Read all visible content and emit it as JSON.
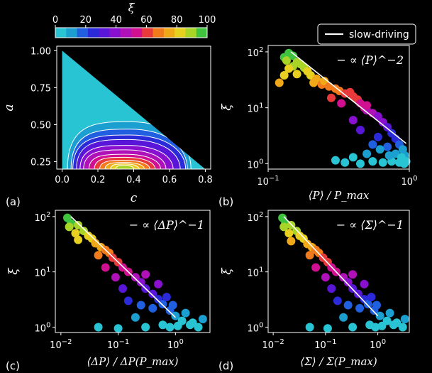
{
  "colorbar": {
    "label": "ξ",
    "ticks": [
      "0",
      "20",
      "40",
      "60",
      "80",
      "100"
    ],
    "colors": [
      "#28c4d4",
      "#1a9fd0",
      "#2060e0",
      "#2a2ad8",
      "#5a16d8",
      "#8a10d0",
      "#b010b8",
      "#d01090",
      "#e83a3a",
      "#f07a1c",
      "#f0a818",
      "#e8d020",
      "#a8d428",
      "#40c440"
    ]
  },
  "legend": {
    "label": "slow-driving"
  },
  "chart_data": [
    {
      "panel": "(a)",
      "type": "contour",
      "xlabel": "c",
      "ylabel": "a",
      "xticks": [
        "0.0",
        "0.2",
        "0.4",
        "0.6",
        "0.8"
      ],
      "yticks": [
        "1.00",
        "0.75",
        "0.50",
        "0.25"
      ],
      "xlim": [
        -0.03,
        0.83
      ],
      "ylim": [
        0.2,
        1.03
      ],
      "region": "triangle c from 0 to 0.8, a from 0.2 to 1.0 along a = 1 - c",
      "peak": {
        "c": 0.35,
        "a": 0.22,
        "value": 90
      },
      "levels": [
        {
          "c_left": 0.03,
          "c_right": 0.72,
          "a_top": 0.52
        },
        {
          "c_left": 0.05,
          "c_right": 0.7,
          "a_top": 0.47
        },
        {
          "c_left": 0.06,
          "c_right": 0.69,
          "a_top": 0.43
        },
        {
          "c_left": 0.08,
          "c_right": 0.66,
          "a_top": 0.4
        },
        {
          "c_left": 0.1,
          "c_right": 0.62,
          "a_top": 0.36
        },
        {
          "c_left": 0.12,
          "c_right": 0.58,
          "a_top": 0.33
        },
        {
          "c_left": 0.15,
          "c_right": 0.55,
          "a_top": 0.3
        },
        {
          "c_left": 0.18,
          "c_right": 0.52,
          "a_top": 0.28
        },
        {
          "c_left": 0.21,
          "c_right": 0.49,
          "a_top": 0.26
        },
        {
          "c_left": 0.24,
          "c_right": 0.46,
          "a_top": 0.245
        },
        {
          "c_left": 0.27,
          "c_right": 0.43,
          "a_top": 0.235
        },
        {
          "c_left": 0.3,
          "c_right": 0.4,
          "a_top": 0.225
        }
      ]
    },
    {
      "panel": "(b)",
      "type": "scatter",
      "xlabel": "⟨P⟩ / P_max",
      "ylabel": "ξ",
      "xscale": "log",
      "yscale": "log",
      "xlim": [
        0.1,
        1.0
      ],
      "ylim": [
        0.8,
        130
      ],
      "xticks": [
        "10^-1",
        "10^0"
      ],
      "yticks": [
        "10^0",
        "10^1",
        "10^2"
      ],
      "line": {
        "label": "− ∝ ⟨P⟩^−2",
        "exponent": -2,
        "x": [
          0.145,
          0.95
        ],
        "y": [
          100,
          2.3
        ]
      },
      "points": [
        [
          0.14,
          95
        ],
        [
          0.13,
          80
        ],
        [
          0.135,
          70
        ],
        [
          0.15,
          85
        ],
        [
          0.16,
          65
        ],
        [
          0.15,
          55
        ],
        [
          0.14,
          50
        ],
        [
          0.17,
          60
        ],
        [
          0.18,
          52
        ],
        [
          0.13,
          38
        ],
        [
          0.12,
          28
        ],
        [
          0.16,
          40
        ],
        [
          0.19,
          45
        ],
        [
          0.2,
          38
        ],
        [
          0.22,
          33
        ],
        [
          0.21,
          28
        ],
        [
          0.24,
          26
        ],
        [
          0.25,
          30
        ],
        [
          0.27,
          24
        ],
        [
          0.3,
          22
        ],
        [
          0.32,
          20
        ],
        [
          0.35,
          18
        ],
        [
          0.38,
          19
        ],
        [
          0.4,
          16
        ],
        [
          0.43,
          14
        ],
        [
          0.45,
          12
        ],
        [
          0.48,
          10
        ],
        [
          0.5,
          9
        ],
        [
          0.55,
          8
        ],
        [
          0.6,
          7
        ],
        [
          0.65,
          5.5
        ],
        [
          0.7,
          4.5
        ],
        [
          0.75,
          3.5
        ],
        [
          0.8,
          2.8
        ],
        [
          0.85,
          2.2
        ],
        [
          0.9,
          1.8
        ],
        [
          0.93,
          1.4
        ],
        [
          0.95,
          1.1
        ],
        [
          0.92,
          1.0
        ],
        [
          0.85,
          1.05
        ],
        [
          0.75,
          1.1
        ],
        [
          0.65,
          1.05
        ],
        [
          0.55,
          1.1
        ],
        [
          0.45,
          1.0
        ],
        [
          0.35,
          1.05
        ],
        [
          0.3,
          1.15
        ],
        [
          0.4,
          1.3
        ],
        [
          0.5,
          1.5
        ],
        [
          0.55,
          2.2
        ],
        [
          0.6,
          3
        ],
        [
          0.45,
          4
        ],
        [
          0.4,
          6
        ],
        [
          0.33,
          12
        ],
        [
          0.28,
          15
        ],
        [
          0.5,
          11
        ],
        [
          0.7,
          2
        ],
        [
          0.8,
          1.5
        ],
        [
          0.88,
          1.3
        ],
        [
          0.72,
          1.4
        ],
        [
          0.62,
          1.8
        ]
      ]
    },
    {
      "panel": "(c)",
      "type": "scatter",
      "xlabel": "⟨ΔP⟩ / ΔP(P_max)",
      "ylabel": "ξ",
      "xscale": "log",
      "yscale": "log",
      "xlim": [
        0.008,
        4.0
      ],
      "ylim": [
        0.8,
        130
      ],
      "xticks": [
        "10^-2",
        "10^-1",
        "10^0"
      ],
      "yticks": [
        "10^0",
        "10^1",
        "10^2"
      ],
      "line": {
        "label": "− ∝ ⟨ΔP⟩^−1",
        "exponent": -1,
        "x": [
          0.015,
          1.0
        ],
        "y": [
          100,
          1.5
        ]
      },
      "points": [
        [
          0.013,
          95
        ],
        [
          0.015,
          75
        ],
        [
          0.014,
          65
        ],
        [
          0.02,
          70
        ],
        [
          0.025,
          55
        ],
        [
          0.018,
          50
        ],
        [
          0.03,
          45
        ],
        [
          0.035,
          40
        ],
        [
          0.02,
          38
        ],
        [
          0.04,
          33
        ],
        [
          0.05,
          28
        ],
        [
          0.06,
          25
        ],
        [
          0.045,
          20
        ],
        [
          0.07,
          22
        ],
        [
          0.08,
          18
        ],
        [
          0.1,
          15
        ],
        [
          0.12,
          12
        ],
        [
          0.15,
          10
        ],
        [
          0.06,
          12
        ],
        [
          0.09,
          8
        ],
        [
          0.2,
          8
        ],
        [
          0.25,
          6.5
        ],
        [
          0.3,
          5
        ],
        [
          0.4,
          4
        ],
        [
          0.5,
          3.2
        ],
        [
          0.6,
          2.6
        ],
        [
          0.8,
          2
        ],
        [
          1.0,
          1.6
        ],
        [
          1.3,
          1.3
        ],
        [
          1.8,
          1.1
        ],
        [
          2.5,
          1.0
        ],
        [
          0.1,
          0.95
        ],
        [
          0.3,
          1.0
        ],
        [
          0.6,
          1.1
        ],
        [
          1.1,
          1.05
        ],
        [
          2.0,
          1.2
        ],
        [
          3.0,
          1.4
        ],
        [
          0.2,
          1.5
        ],
        [
          0.4,
          2.2
        ],
        [
          0.15,
          3
        ],
        [
          0.12,
          5
        ],
        [
          0.3,
          9
        ],
        [
          0.5,
          6
        ],
        [
          0.7,
          3.5
        ],
        [
          0.9,
          2.5
        ],
        [
          1.5,
          1.8
        ],
        [
          0.25,
          2.5
        ],
        [
          0.045,
          1.0
        ],
        [
          0.8,
          1.0
        ]
      ]
    },
    {
      "panel": "(d)",
      "type": "scatter",
      "xlabel": "⟨Σ⟩ / Σ(P_max)",
      "ylabel": "ξ",
      "xscale": "log",
      "yscale": "log",
      "xlim": [
        0.008,
        4.0
      ],
      "ylim": [
        0.8,
        130
      ],
      "xticks": [
        "10^-2",
        "10^-1",
        "10^0"
      ],
      "yticks": [
        "10^0",
        "10^1",
        "10^2"
      ],
      "line": {
        "label": "− ∝ ⟨Σ⟩^−1",
        "exponent": -1,
        "x": [
          0.016,
          1.0
        ],
        "y": [
          100,
          1.6
        ]
      },
      "points": [
        [
          0.015,
          95
        ],
        [
          0.017,
          75
        ],
        [
          0.016,
          65
        ],
        [
          0.022,
          70
        ],
        [
          0.028,
          55
        ],
        [
          0.02,
          50
        ],
        [
          0.032,
          45
        ],
        [
          0.038,
          40
        ],
        [
          0.022,
          36
        ],
        [
          0.045,
          32
        ],
        [
          0.055,
          28
        ],
        [
          0.065,
          25
        ],
        [
          0.05,
          20
        ],
        [
          0.075,
          22
        ],
        [
          0.09,
          18
        ],
        [
          0.11,
          15
        ],
        [
          0.13,
          12
        ],
        [
          0.16,
          10
        ],
        [
          0.065,
          12
        ],
        [
          0.1,
          8
        ],
        [
          0.22,
          8
        ],
        [
          0.27,
          6.5
        ],
        [
          0.33,
          5
        ],
        [
          0.42,
          4
        ],
        [
          0.55,
          3.2
        ],
        [
          0.65,
          2.6
        ],
        [
          0.85,
          2
        ],
        [
          1.1,
          1.6
        ],
        [
          1.5,
          1.3
        ],
        [
          2.0,
          1.1
        ],
        [
          3.0,
          1.0
        ],
        [
          0.11,
          0.95
        ],
        [
          0.33,
          1.0
        ],
        [
          0.7,
          1.1
        ],
        [
          1.2,
          1.05
        ],
        [
          2.3,
          1.2
        ],
        [
          3.3,
          1.4
        ],
        [
          0.22,
          1.5
        ],
        [
          0.45,
          2.2
        ],
        [
          0.17,
          3
        ],
        [
          0.13,
          5
        ],
        [
          0.33,
          9
        ],
        [
          0.55,
          6
        ],
        [
          0.75,
          3.5
        ],
        [
          0.95,
          2.5
        ],
        [
          1.7,
          1.8
        ],
        [
          0.27,
          2.5
        ],
        [
          0.05,
          1.0
        ],
        [
          0.9,
          1.0
        ]
      ]
    }
  ]
}
